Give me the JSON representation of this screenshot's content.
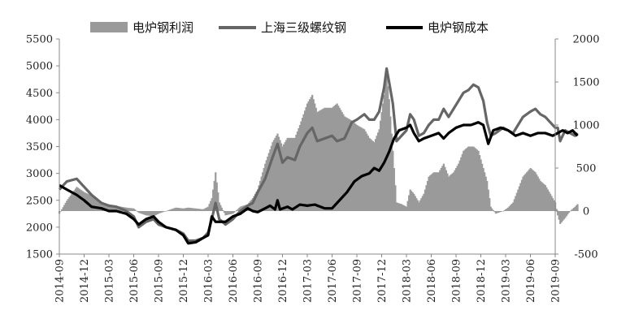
{
  "chart_data": {
    "type": "bar+line",
    "title": "",
    "legend": {
      "placement": "top",
      "entries": [
        {
          "key": "profit",
          "label": "电炉钢利润"
        },
        {
          "key": "rebar",
          "label": "上海三级螺纹钢"
        },
        {
          "key": "cost",
          "label": "电炉钢成本"
        }
      ]
    },
    "x_ticks": [
      "2014-09",
      "2014-12",
      "2015-03",
      "2015-06",
      "2015-09",
      "2015-12",
      "2016-03",
      "2016-06",
      "2016-09",
      "2016-12",
      "2017-03",
      "2017-06",
      "2017-09",
      "2017-12",
      "2018-03",
      "2018-06",
      "2018-09",
      "2018-12",
      "2019-03",
      "2019-06",
      "2019-09"
    ],
    "y_left": {
      "min": 1500,
      "max": 5500,
      "step": 500,
      "ticks": [
        "1500",
        "2000",
        "2500",
        "3000",
        "3500",
        "4000",
        "4500",
        "5000",
        "5500"
      ]
    },
    "y_right": {
      "min": -500,
      "max": 2000,
      "step": 500,
      "ticks": [
        "-500",
        "0",
        "500",
        "1000",
        "1500",
        "2000"
      ]
    },
    "grid": false,
    "series": [
      {
        "name": "上海三级螺纹钢",
        "axis": "left",
        "color": "#666666",
        "points": [
          [
            0,
            2700
          ],
          [
            0.3,
            2850
          ],
          [
            0.7,
            2900
          ],
          [
            1.0,
            2750
          ],
          [
            1.3,
            2600
          ],
          [
            1.7,
            2450
          ],
          [
            2.0,
            2400
          ],
          [
            2.3,
            2380
          ],
          [
            2.7,
            2300
          ],
          [
            3.0,
            2200
          ],
          [
            3.2,
            2000
          ],
          [
            3.5,
            2100
          ],
          [
            3.8,
            2150
          ],
          [
            4.0,
            2050
          ],
          [
            4.3,
            2000
          ],
          [
            4.7,
            1950
          ],
          [
            5.0,
            1880
          ],
          [
            5.2,
            1750
          ],
          [
            5.5,
            1750
          ],
          [
            5.8,
            1800
          ],
          [
            6.0,
            1900
          ],
          [
            6.15,
            2150
          ],
          [
            6.3,
            2450
          ],
          [
            6.45,
            2150
          ],
          [
            6.7,
            2050
          ],
          [
            7.0,
            2150
          ],
          [
            7.3,
            2300
          ],
          [
            7.6,
            2400
          ],
          [
            7.8,
            2450
          ],
          [
            8.0,
            2650
          ],
          [
            8.3,
            2900
          ],
          [
            8.6,
            3300
          ],
          [
            8.8,
            3550
          ],
          [
            9.0,
            3200
          ],
          [
            9.2,
            3300
          ],
          [
            9.5,
            3250
          ],
          [
            9.7,
            3500
          ],
          [
            10.0,
            3750
          ],
          [
            10.2,
            3850
          ],
          [
            10.4,
            3600
          ],
          [
            10.7,
            3650
          ],
          [
            11.0,
            3700
          ],
          [
            11.2,
            3600
          ],
          [
            11.5,
            3650
          ],
          [
            11.8,
            3950
          ],
          [
            12.0,
            4000
          ],
          [
            12.3,
            4100
          ],
          [
            12.5,
            4000
          ],
          [
            12.7,
            4000
          ],
          [
            12.9,
            4150
          ],
          [
            13.1,
            4600
          ],
          [
            13.2,
            4950
          ],
          [
            13.3,
            4700
          ],
          [
            13.45,
            4300
          ],
          [
            13.6,
            3600
          ],
          [
            13.8,
            3700
          ],
          [
            14.0,
            3800
          ],
          [
            14.15,
            4100
          ],
          [
            14.3,
            4000
          ],
          [
            14.5,
            3700
          ],
          [
            14.7,
            3750
          ],
          [
            14.9,
            3900
          ],
          [
            15.1,
            4000
          ],
          [
            15.3,
            4000
          ],
          [
            15.5,
            4200
          ],
          [
            15.7,
            4050
          ],
          [
            15.9,
            4200
          ],
          [
            16.1,
            4350
          ],
          [
            16.3,
            4500
          ],
          [
            16.5,
            4550
          ],
          [
            16.7,
            4650
          ],
          [
            16.9,
            4600
          ],
          [
            17.1,
            4350
          ],
          [
            17.25,
            3950
          ],
          [
            17.4,
            3700
          ],
          [
            17.6,
            3750
          ],
          [
            17.9,
            3850
          ],
          [
            18.1,
            3800
          ],
          [
            18.3,
            3750
          ],
          [
            18.5,
            3900
          ],
          [
            18.7,
            4050
          ],
          [
            19.0,
            4150
          ],
          [
            19.2,
            4200
          ],
          [
            19.4,
            4100
          ],
          [
            19.6,
            4050
          ],
          [
            19.8,
            3950
          ],
          [
            20.0,
            3850
          ],
          [
            20.1,
            3850
          ],
          [
            20.2,
            3600
          ],
          [
            20.4,
            3800
          ],
          [
            20.6,
            3750
          ],
          [
            20.8,
            3700
          ],
          [
            20.9,
            3750
          ]
        ]
      },
      {
        "name": "电炉钢成本",
        "axis": "left",
        "color": "#000000",
        "points": [
          [
            0,
            2780
          ],
          [
            0.3,
            2700
          ],
          [
            0.7,
            2600
          ],
          [
            1.0,
            2500
          ],
          [
            1.3,
            2380
          ],
          [
            1.7,
            2350
          ],
          [
            2.0,
            2300
          ],
          [
            2.3,
            2300
          ],
          [
            2.7,
            2250
          ],
          [
            3.0,
            2150
          ],
          [
            3.2,
            2050
          ],
          [
            3.5,
            2150
          ],
          [
            3.8,
            2200
          ],
          [
            4.0,
            2100
          ],
          [
            4.3,
            2000
          ],
          [
            4.7,
            1950
          ],
          [
            5.0,
            1850
          ],
          [
            5.2,
            1700
          ],
          [
            5.5,
            1720
          ],
          [
            5.8,
            1800
          ],
          [
            6.0,
            1850
          ],
          [
            6.15,
            2200
          ],
          [
            6.3,
            2100
          ],
          [
            6.45,
            2100
          ],
          [
            6.7,
            2100
          ],
          [
            7.0,
            2200
          ],
          [
            7.3,
            2250
          ],
          [
            7.6,
            2350
          ],
          [
            7.8,
            2300
          ],
          [
            8.0,
            2280
          ],
          [
            8.3,
            2350
          ],
          [
            8.5,
            2400
          ],
          [
            8.7,
            2330
          ],
          [
            8.8,
            2500
          ],
          [
            8.9,
            2330
          ],
          [
            9.2,
            2380
          ],
          [
            9.4,
            2330
          ],
          [
            9.7,
            2420
          ],
          [
            10.0,
            2400
          ],
          [
            10.3,
            2420
          ],
          [
            10.7,
            2350
          ],
          [
            11.0,
            2350
          ],
          [
            11.3,
            2500
          ],
          [
            11.6,
            2650
          ],
          [
            11.9,
            2850
          ],
          [
            12.2,
            2950
          ],
          [
            12.5,
            3000
          ],
          [
            12.7,
            3100
          ],
          [
            12.9,
            3050
          ],
          [
            13.1,
            3200
          ],
          [
            13.3,
            3400
          ],
          [
            13.5,
            3650
          ],
          [
            13.7,
            3800
          ],
          [
            14.0,
            3850
          ],
          [
            14.15,
            3900
          ],
          [
            14.3,
            3750
          ],
          [
            14.5,
            3600
          ],
          [
            14.7,
            3650
          ],
          [
            15.0,
            3700
          ],
          [
            15.3,
            3750
          ],
          [
            15.5,
            3650
          ],
          [
            15.7,
            3750
          ],
          [
            16.0,
            3850
          ],
          [
            16.3,
            3900
          ],
          [
            16.6,
            3900
          ],
          [
            16.9,
            3950
          ],
          [
            17.1,
            3900
          ],
          [
            17.3,
            3550
          ],
          [
            17.5,
            3800
          ],
          [
            17.8,
            3850
          ],
          [
            18.1,
            3800
          ],
          [
            18.4,
            3700
          ],
          [
            18.7,
            3750
          ],
          [
            19.0,
            3700
          ],
          [
            19.3,
            3750
          ],
          [
            19.6,
            3750
          ],
          [
            19.9,
            3700
          ],
          [
            20.1,
            3750
          ],
          [
            20.3,
            3800
          ],
          [
            20.5,
            3750
          ],
          [
            20.7,
            3800
          ],
          [
            20.9,
            3700
          ]
        ]
      },
      {
        "name": "电炉钢利润",
        "axis": "right",
        "color": "#9a9a9a",
        "type": "bar",
        "points": [
          [
            0,
            -30
          ],
          [
            0.3,
            120
          ],
          [
            0.7,
            280
          ],
          [
            1.0,
            220
          ],
          [
            1.3,
            180
          ],
          [
            1.7,
            80
          ],
          [
            2.0,
            50
          ],
          [
            2.3,
            60
          ],
          [
            2.7,
            40
          ],
          [
            3.0,
            30
          ],
          [
            3.2,
            -20
          ],
          [
            3.5,
            -50
          ],
          [
            3.8,
            -60
          ],
          [
            4.0,
            -30
          ],
          [
            4.3,
            0
          ],
          [
            4.7,
            40
          ],
          [
            5.0,
            30
          ],
          [
            5.2,
            40
          ],
          [
            5.5,
            30
          ],
          [
            5.8,
            20
          ],
          [
            6.0,
            50
          ],
          [
            6.15,
            150
          ],
          [
            6.3,
            450
          ],
          [
            6.45,
            100
          ],
          [
            6.7,
            -50
          ],
          [
            7.0,
            -30
          ],
          [
            7.3,
            50
          ],
          [
            7.6,
            80
          ],
          [
            7.8,
            150
          ],
          [
            8.0,
            250
          ],
          [
            8.3,
            550
          ],
          [
            8.6,
            800
          ],
          [
            8.8,
            900
          ],
          [
            9.0,
            750
          ],
          [
            9.2,
            850
          ],
          [
            9.5,
            850
          ],
          [
            9.7,
            1000
          ],
          [
            10.0,
            1250
          ],
          [
            10.2,
            1350
          ],
          [
            10.4,
            1150
          ],
          [
            10.7,
            1200
          ],
          [
            11.0,
            1200
          ],
          [
            11.2,
            1250
          ],
          [
            11.5,
            1100
          ],
          [
            11.8,
            1050
          ],
          [
            12.0,
            1000
          ],
          [
            12.3,
            950
          ],
          [
            12.5,
            850
          ],
          [
            12.7,
            800
          ],
          [
            12.9,
            950
          ],
          [
            13.1,
            1350
          ],
          [
            13.2,
            1600
          ],
          [
            13.3,
            1300
          ],
          [
            13.45,
            700
          ],
          [
            13.6,
            100
          ],
          [
            13.8,
            80
          ],
          [
            14.0,
            50
          ],
          [
            14.15,
            250
          ],
          [
            14.3,
            200
          ],
          [
            14.5,
            100
          ],
          [
            14.7,
            200
          ],
          [
            14.9,
            400
          ],
          [
            15.1,
            450
          ],
          [
            15.3,
            450
          ],
          [
            15.5,
            550
          ],
          [
            15.7,
            400
          ],
          [
            15.9,
            450
          ],
          [
            16.1,
            550
          ],
          [
            16.3,
            700
          ],
          [
            16.5,
            750
          ],
          [
            16.7,
            750
          ],
          [
            16.9,
            700
          ],
          [
            17.1,
            500
          ],
          [
            17.25,
            350
          ],
          [
            17.4,
            50
          ],
          [
            17.6,
            -30
          ],
          [
            17.9,
            0
          ],
          [
            18.1,
            40
          ],
          [
            18.3,
            100
          ],
          [
            18.5,
            250
          ],
          [
            18.7,
            400
          ],
          [
            19.0,
            500
          ],
          [
            19.2,
            450
          ],
          [
            19.4,
            350
          ],
          [
            19.6,
            300
          ],
          [
            19.8,
            200
          ],
          [
            20.0,
            100
          ],
          [
            20.1,
            -50
          ],
          [
            20.2,
            -150
          ],
          [
            20.4,
            -80
          ],
          [
            20.6,
            0
          ],
          [
            20.8,
            50
          ],
          [
            20.9,
            80
          ]
        ]
      }
    ]
  }
}
